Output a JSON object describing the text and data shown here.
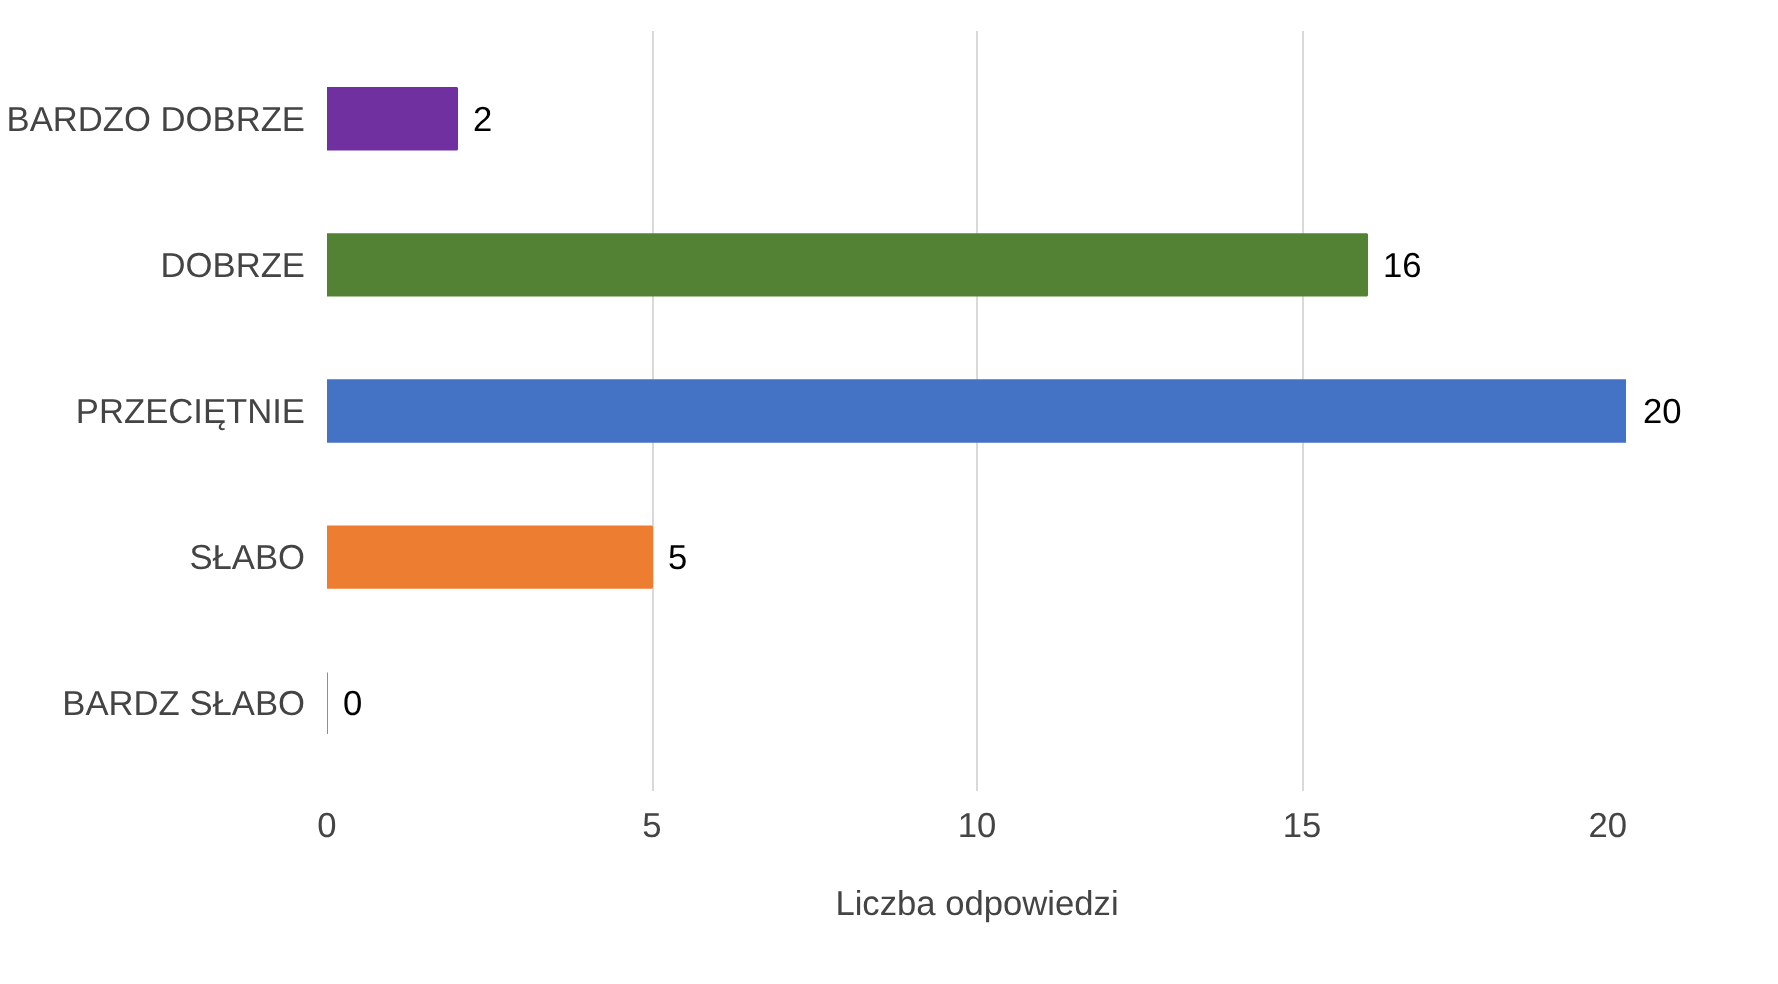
{
  "chart_data": {
    "type": "bar",
    "orientation": "horizontal",
    "categories": [
      "BARDZO DOBRZE",
      "DOBRZE",
      "PRZECIĘTNIE",
      "SŁABO",
      "BARDZ SŁABO"
    ],
    "values": [
      2,
      16,
      20,
      5,
      0
    ],
    "colors": [
      "#7030a0",
      "#548235",
      "#4472c4",
      "#ed7d31",
      "#bf9000"
    ],
    "xlim": [
      0,
      20
    ],
    "xticks": [
      0,
      5,
      10,
      15,
      20
    ],
    "xlabel": "Liczba odpowiedzi",
    "grid": "x",
    "data_labels": true
  }
}
